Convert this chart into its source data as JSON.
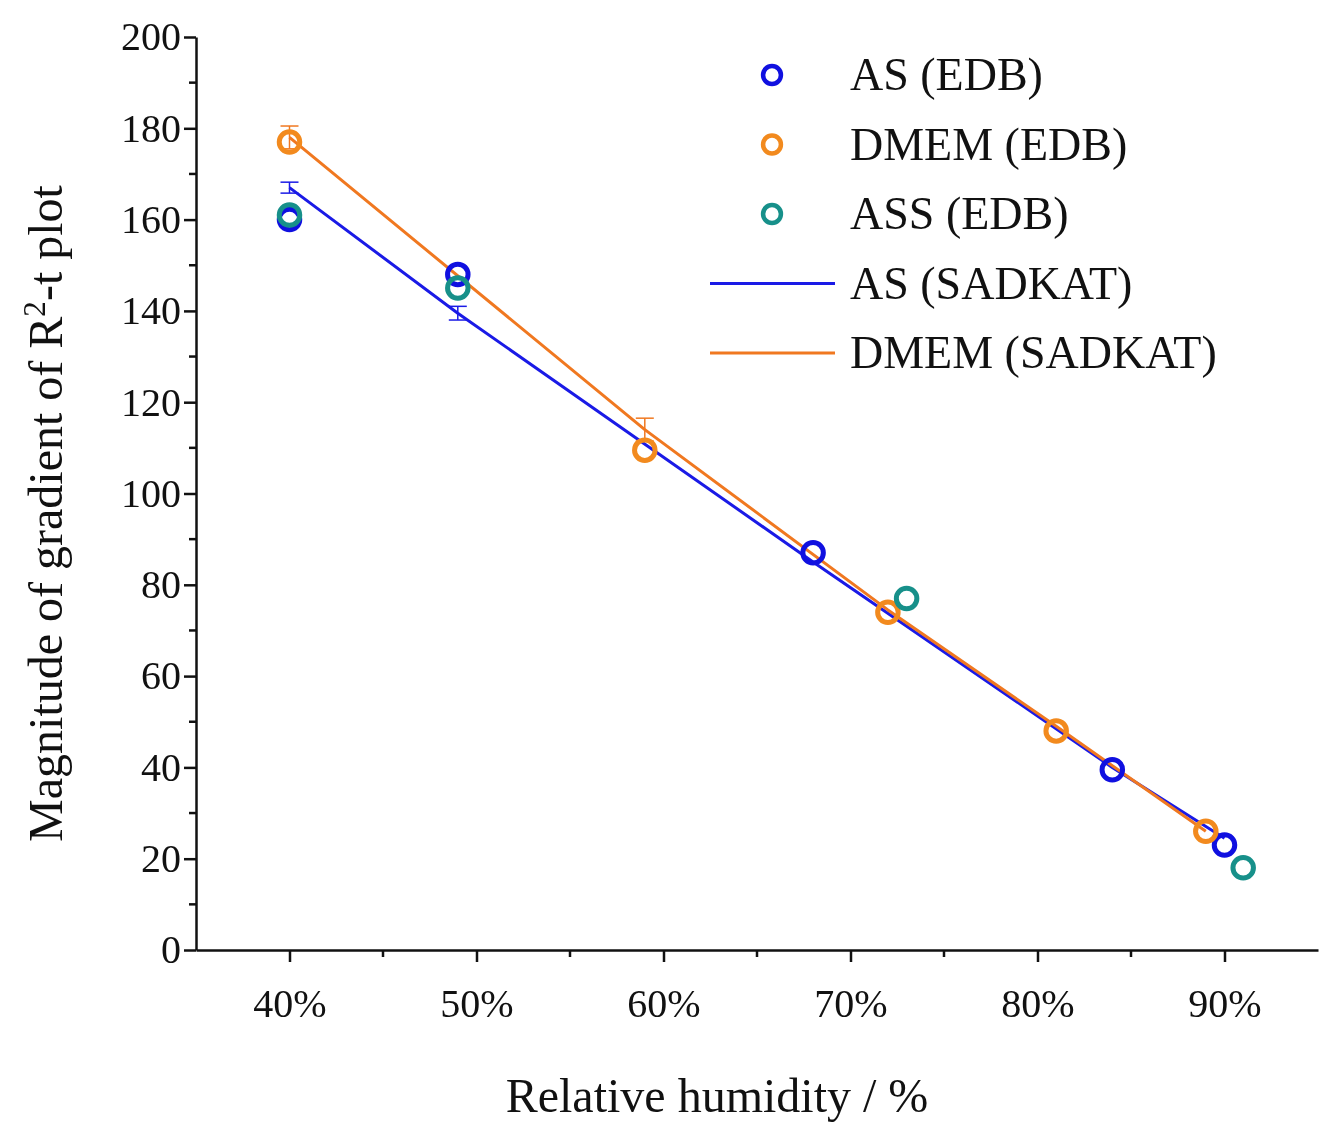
{
  "chart_data": {
    "type": "scatter",
    "xlabel": "Relative humidity / %",
    "ylabel": "Magnitude of gradient of R$^{2}$-t plot",
    "xlim": [
      35,
      95
    ],
    "xticks": [
      {
        "value": 40,
        "label": "40%"
      },
      {
        "value": 50,
        "label": "50%"
      },
      {
        "value": 60,
        "label": "60%"
      },
      {
        "value": 70,
        "label": "70%"
      },
      {
        "value": 80,
        "label": "80%"
      },
      {
        "value": 90,
        "label": "90%"
      }
    ],
    "ylim": [
      0,
      200
    ],
    "yticks": [
      0,
      20,
      40,
      60,
      80,
      100,
      120,
      140,
      160,
      180,
      200
    ],
    "legend": "top right",
    "marker": "circle",
    "grid": false,
    "series": [
      {
        "name": "AS (EDB)",
        "color": "#1010e0",
        "x": [
          40,
          49,
          68,
          84,
          90
        ],
        "values": [
          160,
          148,
          87,
          39.5,
          23
        ]
      },
      {
        "name": "DMEM (EDB)",
        "color": "#f28a1e",
        "x": [
          40,
          59,
          72,
          81,
          89
        ],
        "values": [
          177,
          109.5,
          74,
          48,
          26
        ]
      },
      {
        "name": "ASS (EDB)",
        "color": "#17908a",
        "x": [
          40,
          49,
          73,
          91
        ],
        "values": [
          161,
          145,
          77,
          18
        ]
      },
      {
        "name": "AS (SADKAT)",
        "type": "line",
        "marker": "none",
        "color": "#1a1ae6",
        "x": [
          40,
          49,
          68,
          84,
          90
        ],
        "values": [
          167,
          139.5,
          85,
          40,
          24.5
        ],
        "errors": [
          1.2,
          1.5,
          null,
          null,
          null
        ]
      },
      {
        "name": "DMEM (SADKAT)",
        "type": "line",
        "marker": "none",
        "color": "#f07820",
        "x": [
          40,
          59,
          72,
          81,
          89
        ],
        "values": [
          178,
          114,
          74.5,
          49,
          26
        ],
        "errors": [
          2.5,
          2.5,
          null,
          null,
          null
        ]
      }
    ]
  }
}
